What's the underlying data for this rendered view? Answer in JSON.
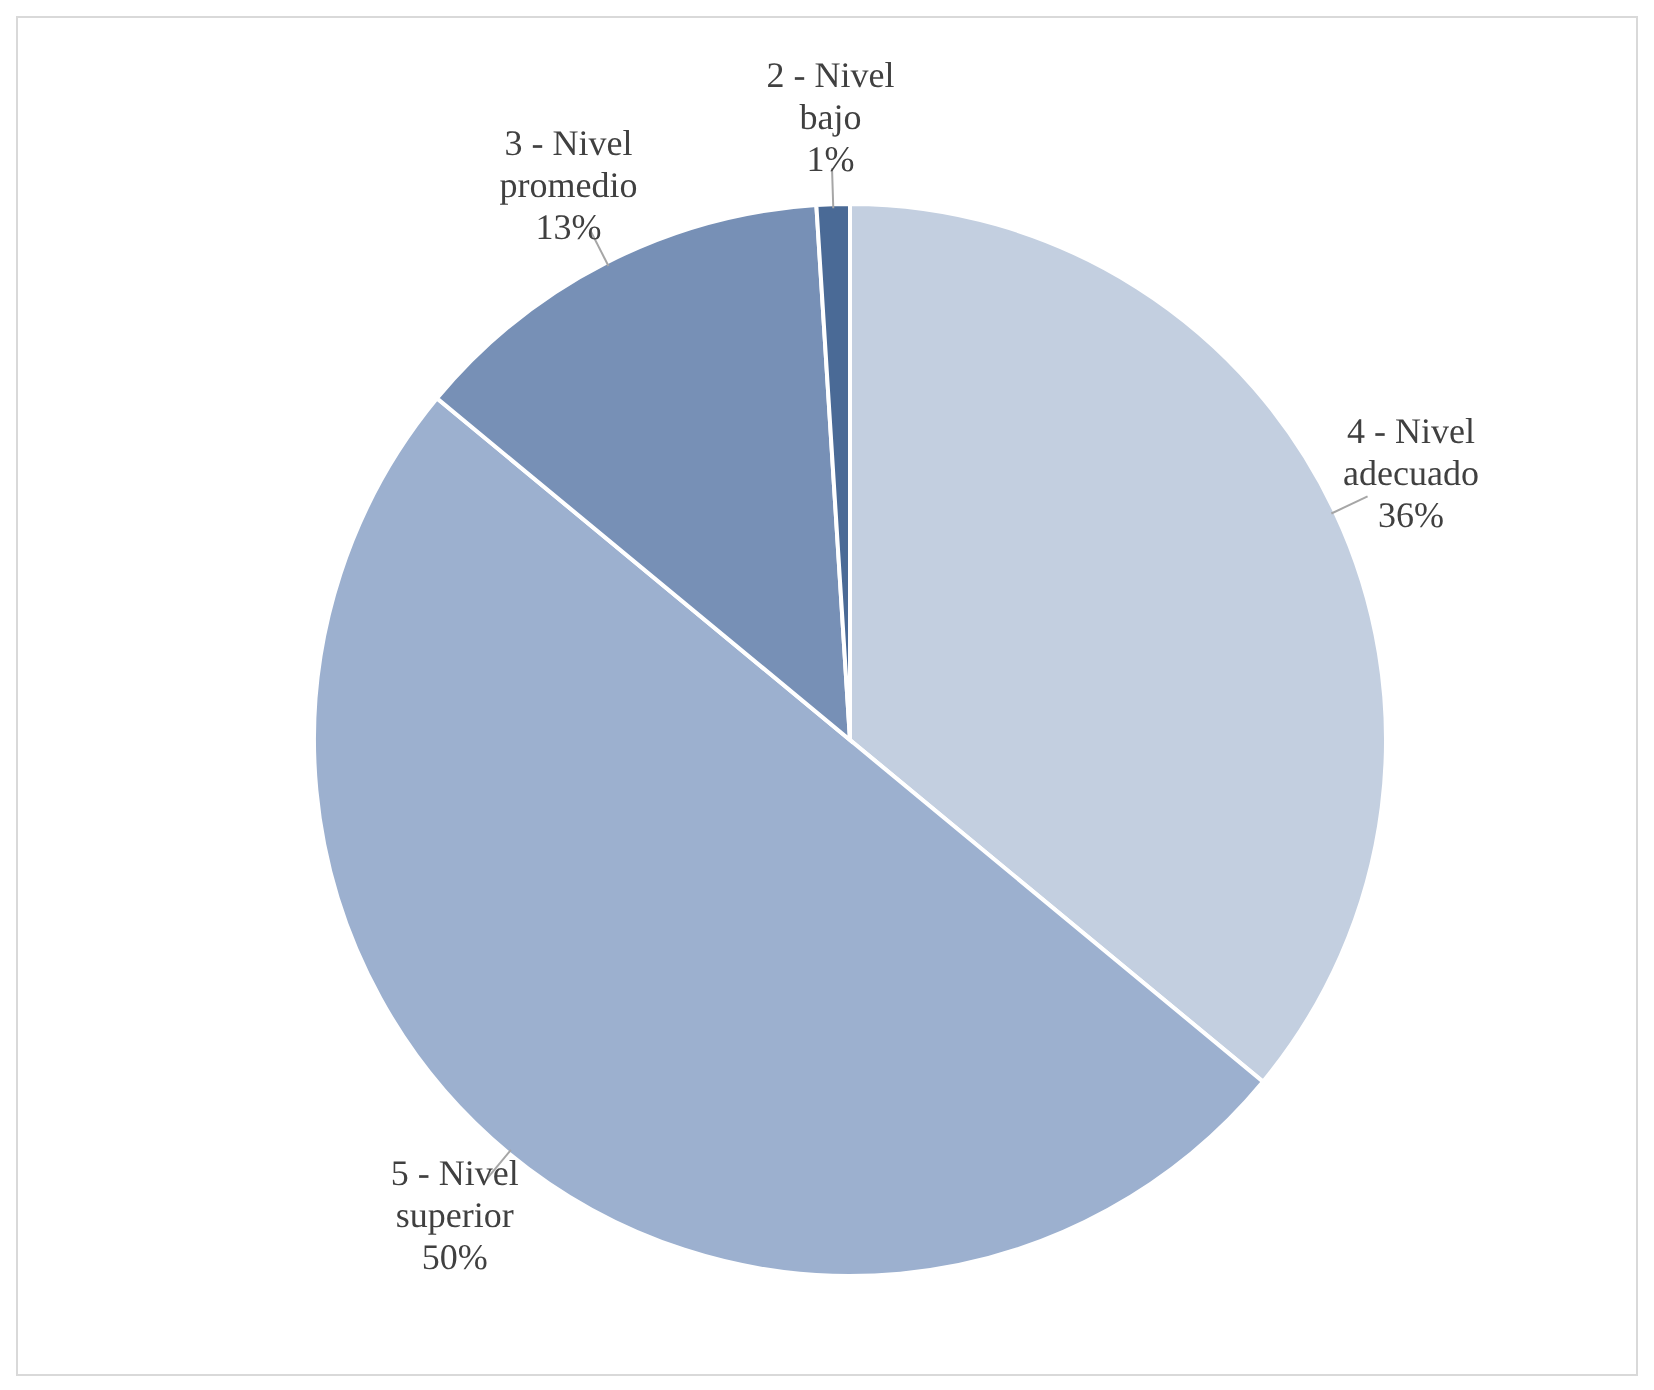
{
  "chart_data": {
    "type": "pie",
    "categories": [
      "4 - Nivel adecuado",
      "5 - Nivel superior",
      "3 - Nivel promedio",
      "2 - Nivel bajo"
    ],
    "values": [
      36,
      50,
      13,
      1
    ],
    "value_labels": [
      "36%",
      "50%",
      "13%",
      "1%"
    ],
    "colors": [
      "#c3cfe0",
      "#9cb0cf",
      "#7790b6",
      "#4a6a96"
    ]
  }
}
